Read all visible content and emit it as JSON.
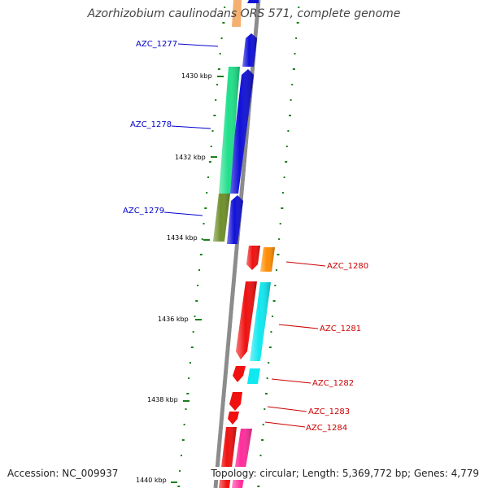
{
  "title": "Azorhizobium caulinodans ORS 571, complete genome",
  "footer": {
    "accession": "Accession: NC_009937",
    "topology": "Topology: circular; Length: 5,369,772 bp; Genes: 4,779"
  },
  "colors": {
    "backbone": "#8c8c8c",
    "forward_label": "#0000cc",
    "reverse_label": "#cc0000",
    "ticks": "#1a7f1a",
    "blue": "#1010d8",
    "green": "#1fe08a",
    "olive": "#6e8f2a",
    "red": "#f01010",
    "orange": "#ff8c00",
    "cyan": "#10e8f0",
    "peach": "#f5b070",
    "magenta": "#ff2d9b"
  },
  "axis": {
    "ticks": [
      "1430 kbp",
      "1432 kbp",
      "1434 kbp",
      "1436 kbp",
      "1438 kbp",
      "1440 kbp"
    ]
  },
  "genes": {
    "forward": [
      "AZC_1277",
      "AZC_1278",
      "AZC_1279"
    ],
    "reverse": [
      "AZC_1280",
      "AZC_1281",
      "AZC_1282",
      "AZC_1283",
      "AZC_1284"
    ]
  }
}
